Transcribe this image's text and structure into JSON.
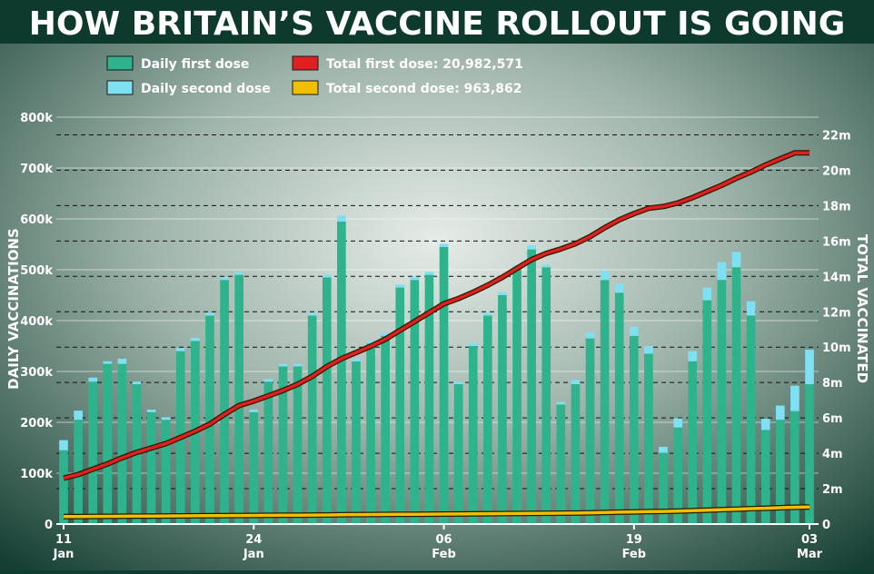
{
  "chart_data": {
    "type": "bar",
    "title": "HOW BRITAIN’S VACCINE ROLLOUT IS GOING",
    "ylabel": "DAILY VACCINATIONS",
    "y2label": "TOTAL VACCINATED",
    "ylim": [
      0,
      800000
    ],
    "y2lim": [
      0,
      23000000
    ],
    "yticks": [
      "0",
      "100k",
      "200k",
      "300k",
      "400k",
      "500k",
      "600k",
      "700k",
      "800k"
    ],
    "y2ticks": [
      "0",
      "2m",
      "4m",
      "6m",
      "8m",
      "10m",
      "12m",
      "14m",
      "16m",
      "18m",
      "20m",
      "22m"
    ],
    "xticks": [
      {
        "index": 0,
        "day": "11",
        "month": "Jan"
      },
      {
        "index": 13,
        "day": "24",
        "month": "Jan"
      },
      {
        "index": 26,
        "day": "06",
        "month": "Feb"
      },
      {
        "index": 39,
        "day": "19",
        "month": "Feb"
      },
      {
        "index": 51,
        "day": "03",
        "month": "Mar"
      }
    ],
    "legend": [
      {
        "label": "Daily first dose",
        "color": "#2fb38c"
      },
      {
        "label": "Daily second dose",
        "color": "#7fe0f2"
      },
      {
        "label": "Total first dose: 20,982,571",
        "color": "#e02020"
      },
      {
        "label": "Total second dose: 963,862",
        "color": "#f0c000"
      }
    ],
    "colors": {
      "first": "#2fb38c",
      "second": "#7fe0f2",
      "total_first": "#e02020",
      "total_second": "#f0c000"
    },
    "first_dose": [
      145000,
      205000,
      280000,
      315000,
      315000,
      275000,
      220000,
      205000,
      340000,
      360000,
      410000,
      480000,
      490000,
      220000,
      280000,
      310000,
      310000,
      410000,
      485000,
      595000,
      320000,
      355000,
      370000,
      465000,
      480000,
      490000,
      545000,
      275000,
      350000,
      410000,
      450000,
      500000,
      540000,
      505000,
      235000,
      275000,
      365000,
      480000,
      455000,
      370000,
      335000,
      140000,
      190000,
      320000,
      440000,
      480000,
      505000,
      410000,
      185000,
      205000,
      222000,
      275000
    ],
    "second_dose": [
      20000,
      18000,
      8000,
      5000,
      10000,
      5000,
      5000,
      5000,
      6000,
      6000,
      5000,
      5000,
      5000,
      5000,
      5000,
      5000,
      5000,
      5000,
      5000,
      12000,
      5000,
      5000,
      6000,
      6000,
      6000,
      6000,
      6000,
      5000,
      6000,
      5000,
      6000,
      8000,
      8000,
      5000,
      5000,
      8000,
      12000,
      18000,
      18000,
      18000,
      15000,
      12000,
      18000,
      20000,
      25000,
      35000,
      30000,
      28000,
      22000,
      28000,
      50000,
      68000
    ],
    "total_first": [
      2600000,
      2800000,
      3100000,
      3400000,
      3750000,
      4050000,
      4300000,
      4550000,
      4900000,
      5250000,
      5650000,
      6200000,
      6700000,
      6950000,
      7250000,
      7550000,
      7900000,
      8350000,
      8900000,
      9350000,
      9700000,
      10050000,
      10450000,
      10950000,
      11450000,
      11950000,
      12450000,
      12750000,
      13100000,
      13500000,
      13950000,
      14450000,
      14950000,
      15300000,
      15550000,
      15850000,
      16250000,
      16750000,
      17200000,
      17550000,
      17850000,
      17950000,
      18150000,
      18450000,
      18800000,
      19150000,
      19550000,
      19900000,
      20300000,
      20650000,
      20982571,
      20982571
    ],
    "total_second": [
      420000,
      425000,
      430000,
      435000,
      440000,
      445000,
      450000,
      455000,
      460000,
      466000,
      472000,
      478000,
      484000,
      490000,
      495000,
      500000,
      505000,
      510000,
      515000,
      527000,
      532000,
      537000,
      543000,
      549000,
      555000,
      561000,
      567000,
      572000,
      578000,
      583000,
      589000,
      597000,
      605000,
      610000,
      615000,
      623000,
      635000,
      653000,
      671000,
      689000,
      704000,
      716000,
      734000,
      754000,
      779000,
      814000,
      844000,
      872000,
      894000,
      922000,
      950000,
      963862
    ]
  }
}
